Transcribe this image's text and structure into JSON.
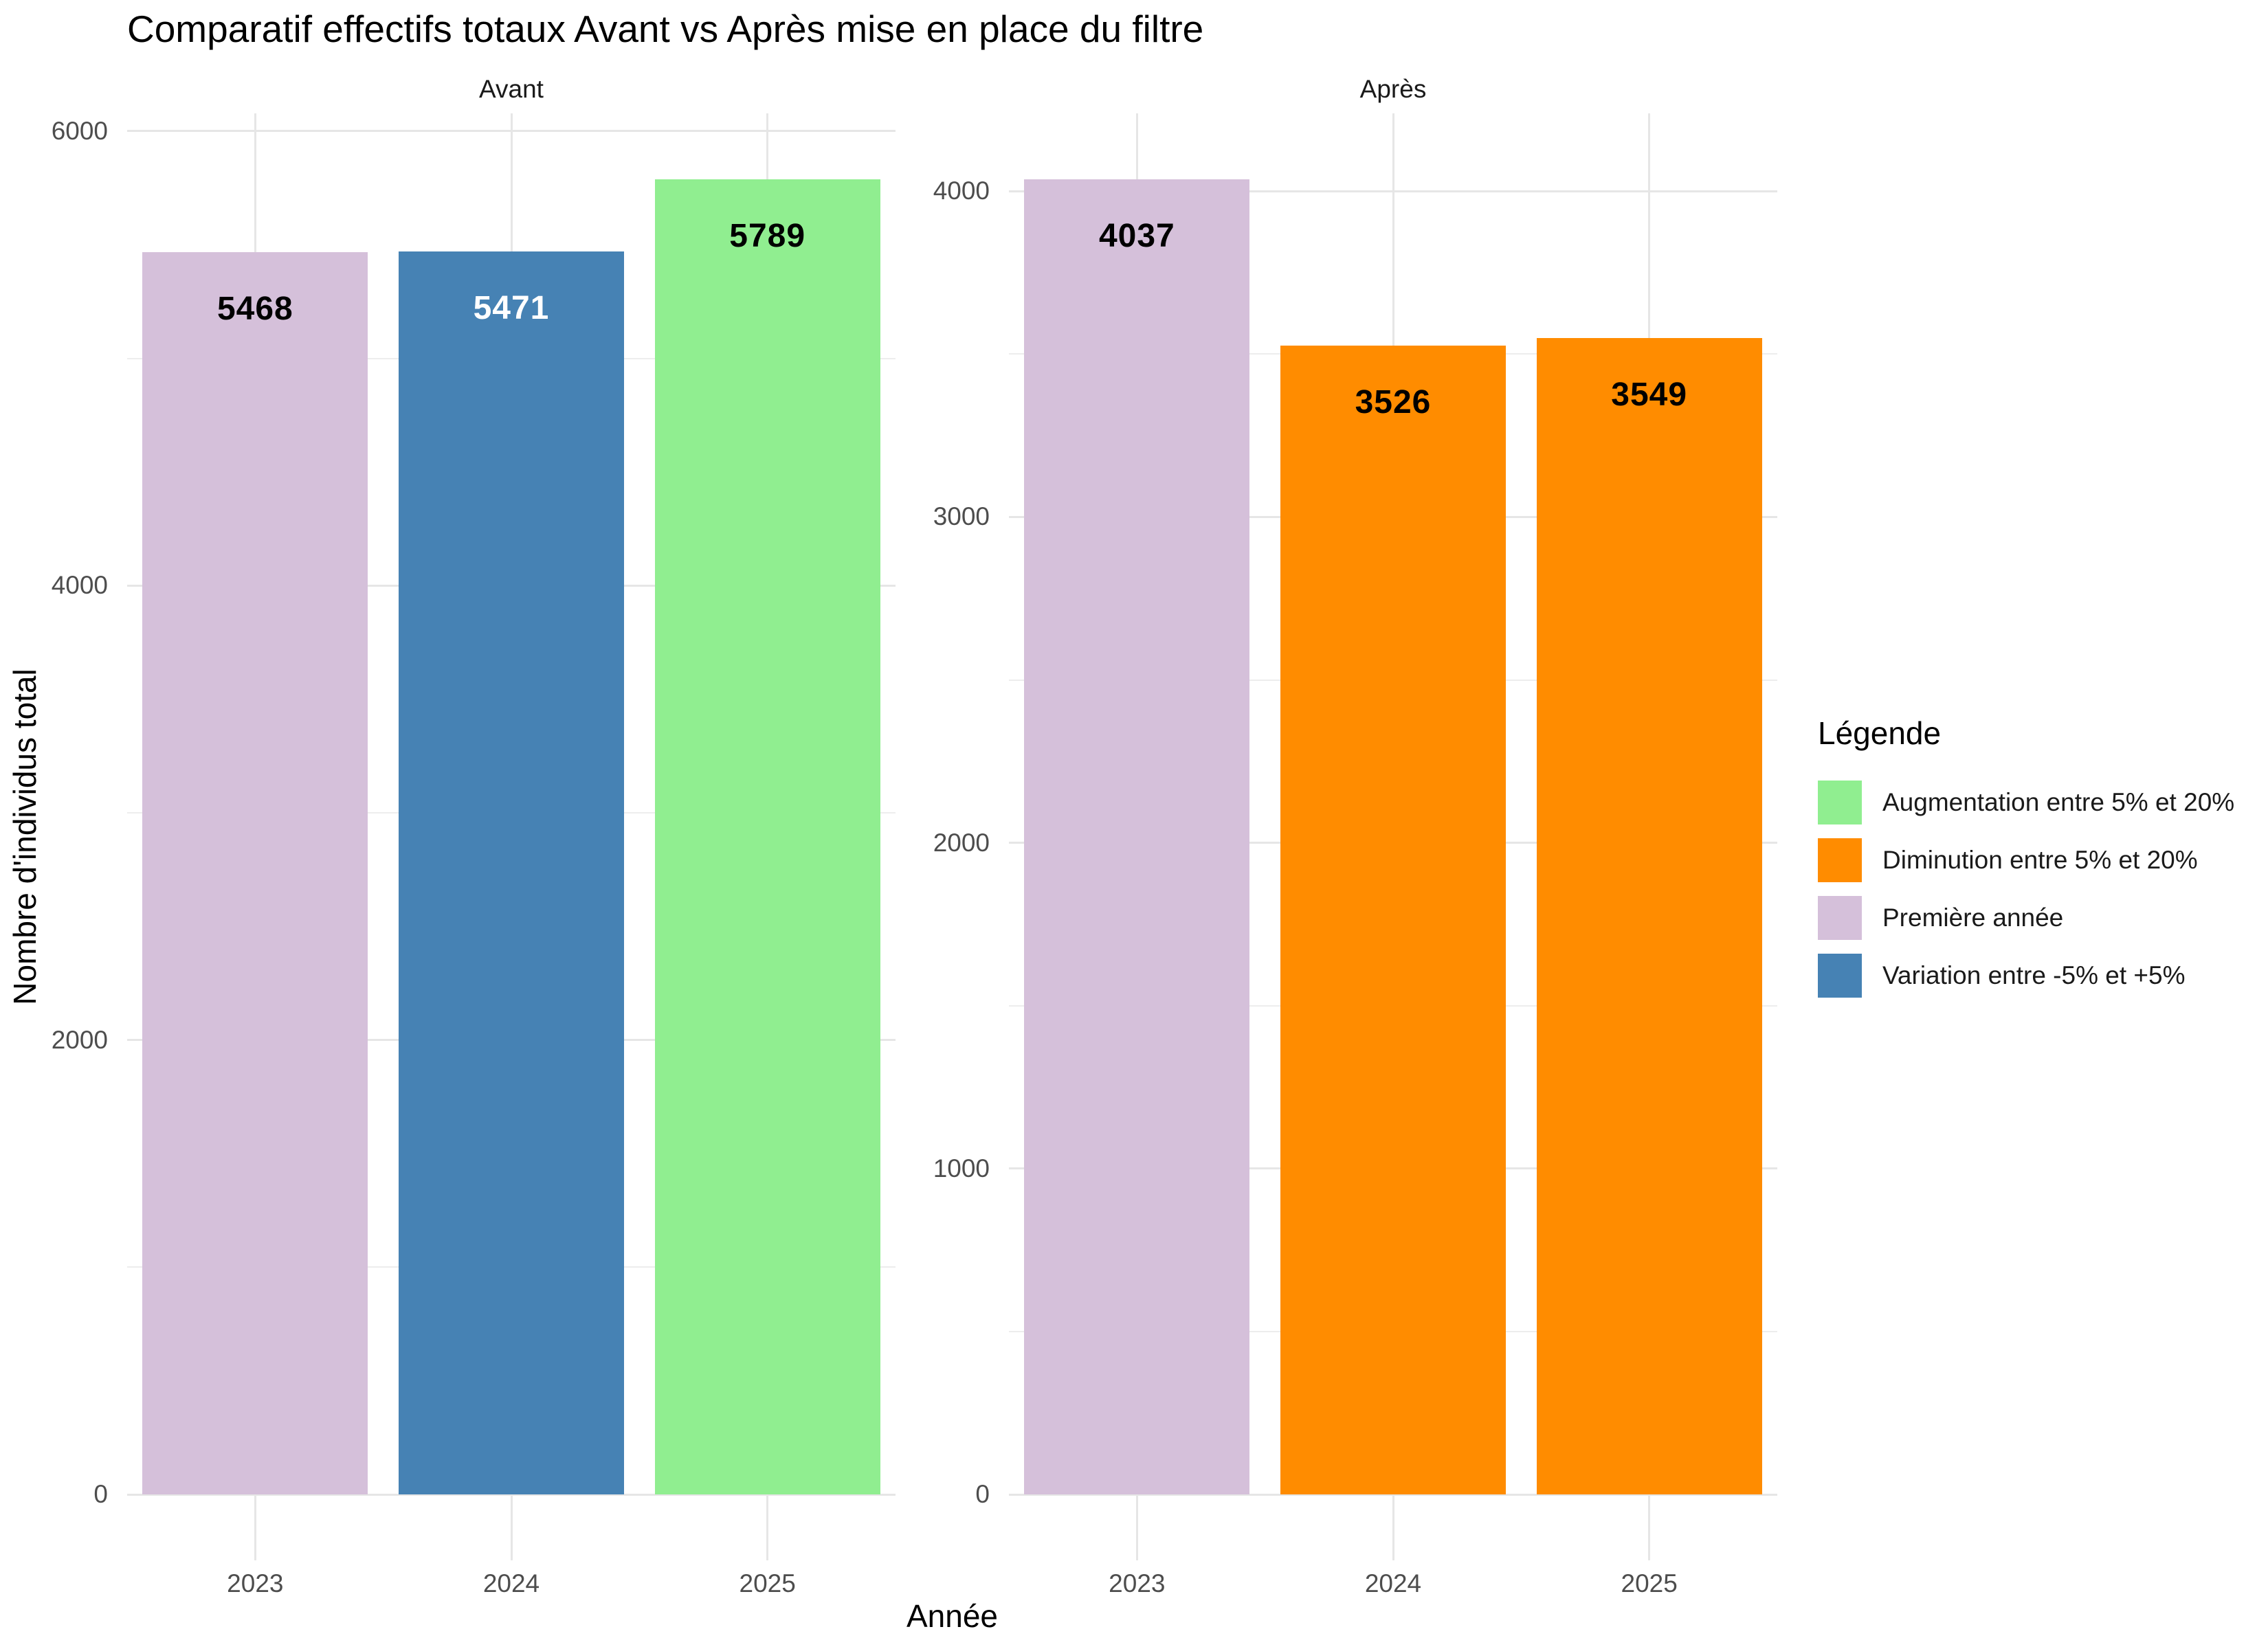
{
  "chart_data": {
    "type": "bar",
    "title": "Comparatif effectifs totaux Avant vs Après mise en place du filtre",
    "xlabel": "Année",
    "ylabel": "Nombre d'individus total",
    "grid": true,
    "legend": {
      "title": "Légende",
      "position": "right",
      "entries": [
        {
          "label": "Augmentation entre 5% et 20%",
          "color": "#90EE90"
        },
        {
          "label": "Diminution entre 5% et 20%",
          "color": "#FF8C00"
        },
        {
          "label": "Première année",
          "color": "#D5C0DA"
        },
        {
          "label": "Variation entre -5% et +5%",
          "color": "#4682B4"
        }
      ]
    },
    "facets": [
      {
        "label": "Avant",
        "categories": [
          "2023",
          "2024",
          "2025"
        ],
        "values": [
          5468,
          5471,
          5789
        ],
        "series_class": [
          "Première année",
          "Variation entre -5% et +5%",
          "Augmentation entre 5% et 20%"
        ],
        "bar_colors": [
          "#D5C0DA",
          "#4682B4",
          "#90EE90"
        ],
        "label_colors": [
          "#000000",
          "#FFFFFF",
          "#000000"
        ],
        "y_ticks": [
          0,
          2000,
          4000,
          6000
        ],
        "y_minor_ticks": [
          1000,
          3000,
          5000
        ],
        "ylim": [
          0,
          6078
        ]
      },
      {
        "label": "Après",
        "categories": [
          "2023",
          "2024",
          "2025"
        ],
        "values": [
          4037,
          3526,
          3549
        ],
        "series_class": [
          "Première année",
          "Diminution entre 5% et 20%",
          "Diminution entre 5% et 20%"
        ],
        "bar_colors": [
          "#D5C0DA",
          "#FF8C00",
          "#FF8C00"
        ],
        "label_colors": [
          "#000000",
          "#000000",
          "#000000"
        ],
        "y_ticks": [
          0,
          1000,
          2000,
          3000,
          4000
        ],
        "y_minor_ticks": [
          500,
          1500,
          2500,
          3500
        ],
        "ylim": [
          0,
          4239
        ]
      }
    ],
    "colors": {
      "background": "#FFFFFF",
      "grid": "#E6E6E6",
      "tick_text": "#4D4D4D",
      "text": "#1A1A1A"
    }
  }
}
